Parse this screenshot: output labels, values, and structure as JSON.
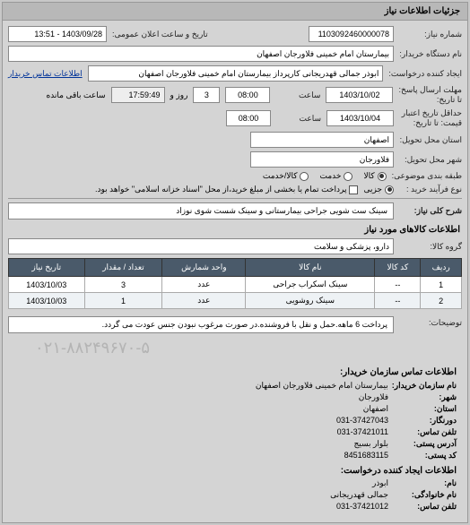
{
  "panel_title": "جزئیات اطلاعات نیاز",
  "fields": {
    "need_no_label": "شماره نیاز:",
    "need_no": "1103092460000078",
    "announce_label": "تاریخ و ساعت اعلان عمومی:",
    "announce_value": "1403/09/28 - 13:51",
    "buyer_unit_label": "نام دستگاه خریدار:",
    "buyer_unit": "بیمارستان امام خمینی فلاورجان اصفهان",
    "creator_label": "ایجاد کننده درخواست:",
    "creator": "ابوذر جمالی قهدریجانی کارپرداز بیمارستان امام خمینی فلاورجان اصفهان",
    "creator_link": "اطلاعات تماس خریدار",
    "deadline_send_label": "مهلت ارسال پاسخ:\nتا تاریخ:",
    "deadline_date": "1403/10/02",
    "time_label": "ساعت",
    "deadline_time": "08:00",
    "days": "3",
    "days_label": "روز و",
    "remain_time": "17:59:49",
    "remain_label": "ساعت باقی مانده",
    "min_valid_label": "حداقل تاریخ اعتبار\nقیمت: تا تاریخ:",
    "min_valid_date": "1403/10/04",
    "min_valid_time": "08:00",
    "delivery_prov_label": "استان محل تحویل:",
    "delivery_prov": "اصفهان",
    "delivery_city_label": "شهر محل تحویل:",
    "delivery_city": "فلاورجان",
    "subject_class_label": "طبقه بندی موضوعی:",
    "radio_goods": "کالا",
    "radio_service": "خدمت",
    "radio_both": "کالا/خدمت",
    "purchase_type_label": "نوع فرآیند خرید :",
    "radio_small": "جزیی",
    "purchase_note": "پرداخت تمام یا بخشی از مبلغ خرید،از محل \"اسناد خزانه اسلامی\" خواهد بود.",
    "main_subject_label": "شرح کلی نیاز:",
    "main_subject": "سینک ست شویی جراحی بیمارستانی و سینک شست شوی نوزاد"
  },
  "items_section": {
    "title": "اطلاعات کالاهای مورد نیاز",
    "group_label": "گروه کالا:",
    "group_value": "دارو، پزشکی و سلامت",
    "columns": [
      "ردیف",
      "کد کالا",
      "نام کالا",
      "واحد شمارش",
      "تعداد / مقدار",
      "تاریخ نیاز"
    ],
    "rows": [
      [
        "1",
        "--",
        "سینک اسکراب جراحی",
        "عدد",
        "3",
        "1403/10/03"
      ],
      [
        "2",
        "--",
        "سینک روشویی",
        "عدد",
        "1",
        "1403/10/03"
      ]
    ],
    "desc_label": "توضیحات:",
    "desc_value": "پرداخت 6 ماهه.حمل و نقل با فروشنده.در صورت مرغوب نبودن جنس عودت می گردد."
  },
  "watermark": "۰۲۱-۸۸۲۴۹۶۷۰-۵",
  "contact": {
    "title": "اطلاعات تماس سازمان خریدار:",
    "org_label": "نام سازمان خریدار:",
    "org": "بیمارستان امام خمینی فلاورجان اصفهان",
    "city_label": "شهر:",
    "city": "فلاورجان",
    "prov_label": "استان:",
    "prov": "اصفهان",
    "fax_label": "دورنگار:",
    "fax": "031-37427043",
    "phone_label": "تلفن تماس:",
    "phone": "031-37421011",
    "postal_label": "آدرس پستی:",
    "postal": "بلوار بسیج",
    "zip_label": "کد پستی:",
    "zip": "8451683115",
    "creator_block_title": "اطلاعات ایجاد کننده درخواست:",
    "name_label": "نام:",
    "name": "ابوذر",
    "lname_label": "نام خانوادگی:",
    "lname": "جمالی قهدریجانی",
    "cphone_label": "تلفن تماس:",
    "cphone": "031-37421012"
  }
}
